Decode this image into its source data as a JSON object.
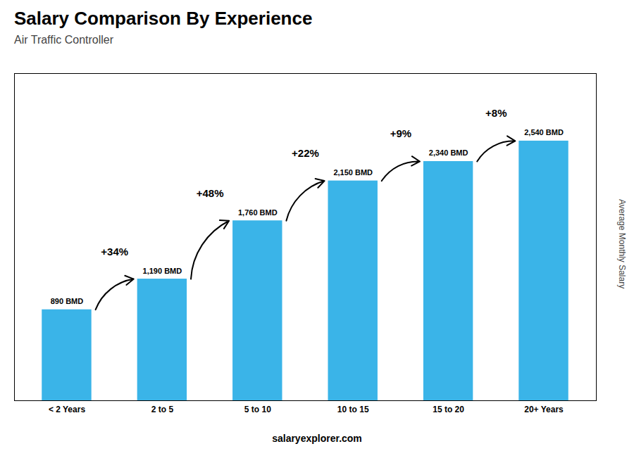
{
  "chart_data": {
    "type": "bar",
    "title": "Salary Comparison By Experience",
    "subtitle": "Air Traffic Controller",
    "ylabel": "Average Monthly Salary",
    "caption": "salaryexplorer.com",
    "categories": [
      "< 2 Years",
      "2 to 5",
      "5 to 10",
      "10 to 15",
      "15 to 20",
      "20+ Years"
    ],
    "values": [
      890,
      1190,
      1760,
      2150,
      2340,
      2540
    ],
    "value_labels": [
      "890 BMD",
      "1,190 BMD",
      "1,760 BMD",
      "2,150 BMD",
      "2,340 BMD",
      "2,540 BMD"
    ],
    "data_labels": true,
    "color": "#3ab4e8",
    "ylim": [
      0,
      3200
    ],
    "yticks": [],
    "tick_labels": "x",
    "grid": false,
    "annotations": [
      {
        "text": "+34%",
        "from": "< 2 Years",
        "to": "2 to 5"
      },
      {
        "text": "+48%",
        "from": "2 to 5",
        "to": "5 to 10"
      },
      {
        "text": "+22%",
        "from": "5 to 10",
        "to": "10 to 15"
      },
      {
        "text": "+9%",
        "from": "10 to 15",
        "to": "15 to 20"
      },
      {
        "text": "+8%",
        "from": "15 to 20",
        "to": "20+ Years"
      }
    ]
  }
}
